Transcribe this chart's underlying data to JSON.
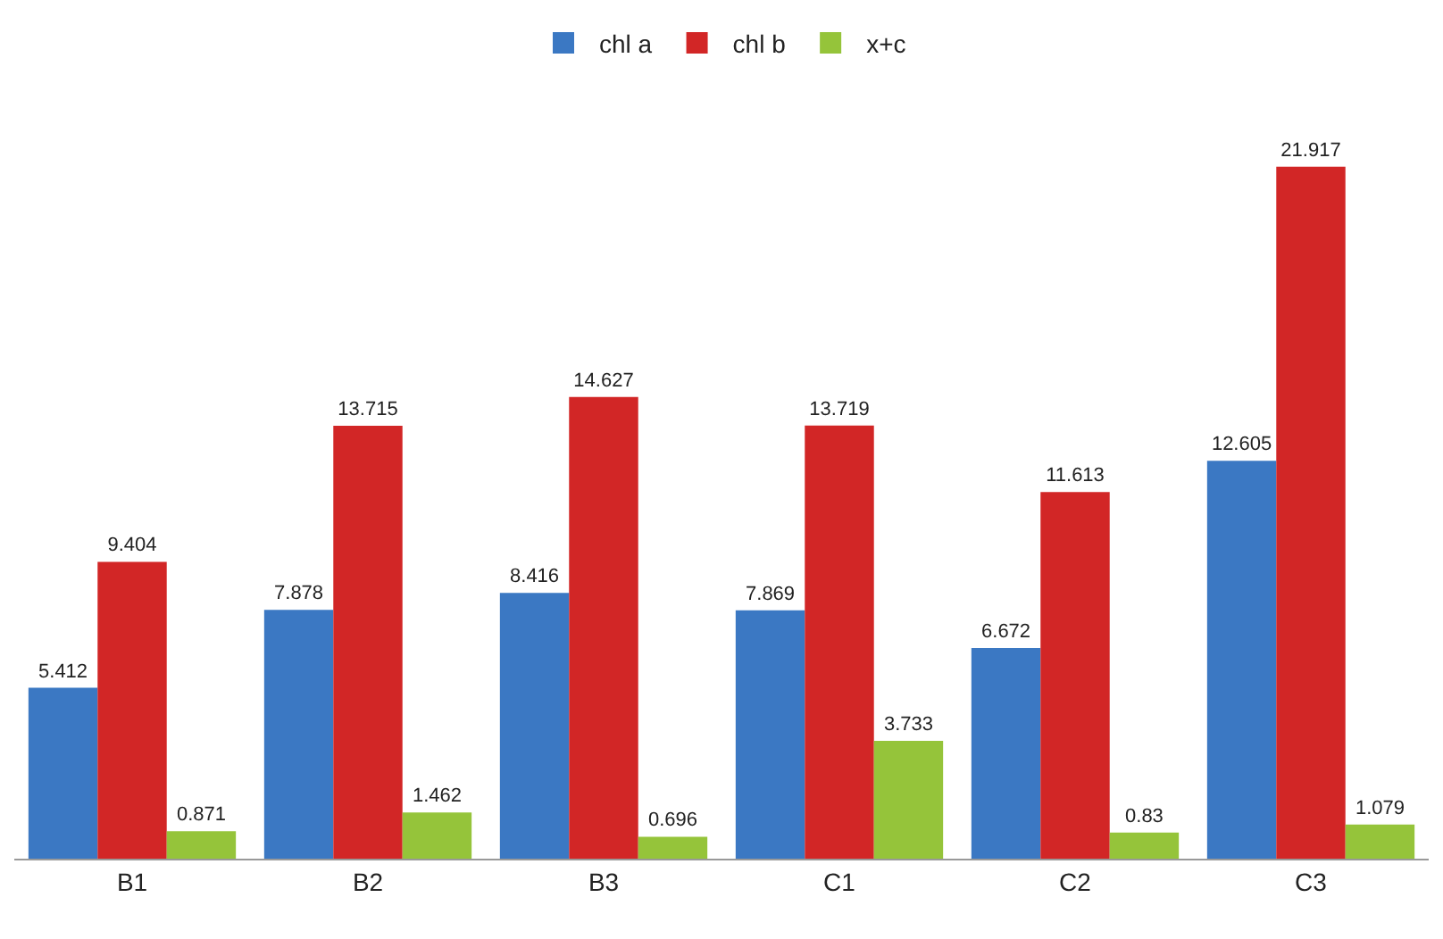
{
  "chart_data": {
    "type": "bar",
    "categories": [
      "B1",
      "B2",
      "B3",
      "C1",
      "C2",
      "C3"
    ],
    "series": [
      {
        "name": "chl a",
        "color": "#3b78c3",
        "values": [
          5.412,
          7.878,
          8.416,
          7.869,
          6.672,
          12.605
        ]
      },
      {
        "name": "chl b",
        "color": "#d22626",
        "values": [
          9.404,
          13.715,
          14.627,
          13.719,
          11.613,
          21.917
        ]
      },
      {
        "name": "x+c",
        "color": "#95c43a",
        "values": [
          0.871,
          1.462,
          0.696,
          3.733,
          0.83,
          1.079
        ]
      }
    ],
    "data_labels": true,
    "legend": "top"
  }
}
